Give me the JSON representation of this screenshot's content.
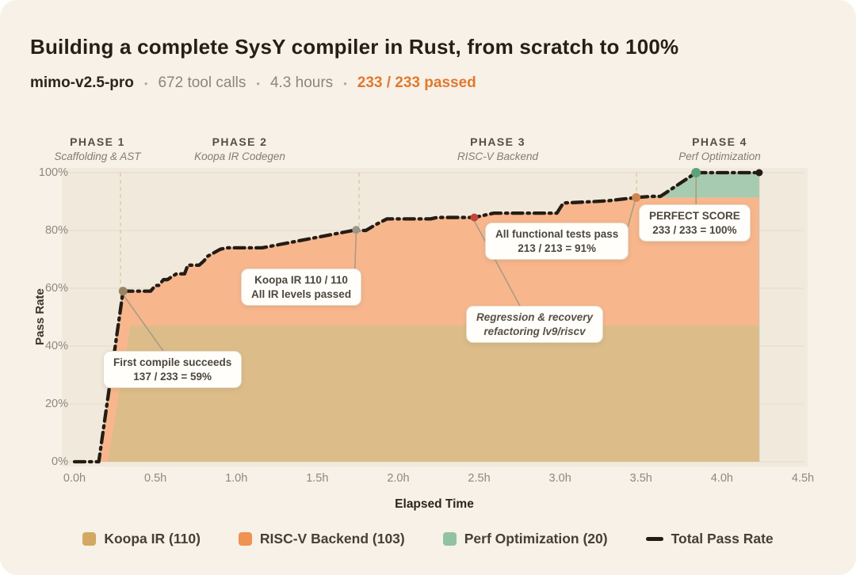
{
  "header": {
    "title": "Building a complete SysY compiler in Rust, from scratch to 100%",
    "model": "mimo-v2.5-pro",
    "separator": "•",
    "stats": [
      "672 tool calls",
      "4.3 hours"
    ],
    "passed": "233 / 233 passed",
    "passed_color": "#e0792f"
  },
  "phases": [
    {
      "name": "PHASE 1",
      "subtitle": "Scaffolding & AST"
    },
    {
      "name": "PHASE 2",
      "subtitle": "Koopa IR Codegen"
    },
    {
      "name": "PHASE 3",
      "subtitle": "RISC-V Backend"
    },
    {
      "name": "PHASE 4",
      "subtitle": "Perf Optimization"
    }
  ],
  "axes": {
    "y_label": "Pass Rate",
    "x_label": "Elapsed Time",
    "y_ticks": [
      {
        "value": 0,
        "label": "0%"
      },
      {
        "value": 20,
        "label": "20%"
      },
      {
        "value": 40,
        "label": "40%"
      },
      {
        "value": 60,
        "label": "60%"
      },
      {
        "value": 80,
        "label": "80%"
      },
      {
        "value": 100,
        "label": "100%"
      }
    ],
    "x_ticks": [
      {
        "value": 0,
        "label": "0.0h"
      },
      {
        "value": 0.5,
        "label": "0.5h"
      },
      {
        "value": 1,
        "label": "1.0h"
      },
      {
        "value": 1.5,
        "label": "1.5h"
      },
      {
        "value": 2,
        "label": "2.0h"
      },
      {
        "value": 2.5,
        "label": "2.5h"
      },
      {
        "value": 3,
        "label": "3.0h"
      },
      {
        "value": 3.5,
        "label": "3.5h"
      },
      {
        "value": 4,
        "label": "4.0h"
      },
      {
        "value": 4.5,
        "label": "4.5h"
      }
    ]
  },
  "annotations": [
    {
      "id": "first-compile",
      "lines": [
        "First compile succeeds",
        "137 / 233 = 59%"
      ],
      "italic": false
    },
    {
      "id": "koopa-complete",
      "lines": [
        "Koopa IR 110 / 110",
        "All IR levels passed"
      ],
      "italic": false
    },
    {
      "id": "functional-pass",
      "lines": [
        "All functional tests pass",
        "213 / 213 = 91%"
      ],
      "italic": false
    },
    {
      "id": "regression",
      "lines": [
        "Regression & recovery",
        "refactoring lv9/riscv"
      ],
      "italic": true
    },
    {
      "id": "perfect-score",
      "lines": [
        "PERFECT SCORE",
        "233 / 233 = 100%"
      ],
      "italic": false
    }
  ],
  "legend": {
    "items": [
      {
        "label": "Koopa IR (110)",
        "color": "#d2a862",
        "type": "square"
      },
      {
        "label": "RISC-V Backend (103)",
        "color": "#ef9252",
        "type": "square"
      },
      {
        "label": "Perf Optimization (20)",
        "color": "#91c2a2",
        "type": "square"
      },
      {
        "label": "Total Pass Rate",
        "color": "#221c15",
        "type": "line"
      }
    ]
  },
  "chart_data": {
    "type": "line+stacked-area",
    "title": "Building a complete SysY compiler in Rust, from scratch to 100%",
    "xlabel": "Elapsed Time",
    "ylabel": "Pass Rate",
    "x_unit": "hours",
    "y_unit": "percent",
    "xlim": [
      0,
      4.5
    ],
    "ylim": [
      0,
      100
    ],
    "grid": "horizontal",
    "legend_position": "bottom",
    "total_tests": 233,
    "data_end_hour": 4.23,
    "phase_boundaries_hours": [
      0.284,
      1.758,
      3.472
    ],
    "total_pass_rate": [
      [
        0.0,
        0
      ],
      [
        0.15,
        0
      ],
      [
        0.3,
        59
      ],
      [
        0.47,
        59
      ],
      [
        0.5,
        61
      ],
      [
        0.52,
        61
      ],
      [
        0.55,
        63
      ],
      [
        0.575,
        63
      ],
      [
        0.6,
        64
      ],
      [
        0.63,
        65
      ],
      [
        0.68,
        65
      ],
      [
        0.7,
        68
      ],
      [
        0.77,
        68
      ],
      [
        0.8,
        69.5
      ],
      [
        0.82,
        71
      ],
      [
        0.9,
        73.5
      ],
      [
        0.94,
        74
      ],
      [
        1.16,
        74
      ],
      [
        1.72,
        80
      ],
      [
        1.8,
        80
      ],
      [
        1.86,
        82
      ],
      [
        1.93,
        84
      ],
      [
        2.2,
        84
      ],
      [
        2.24,
        84.5
      ],
      [
        2.47,
        84.5
      ],
      [
        2.59,
        86
      ],
      [
        2.98,
        86
      ],
      [
        3.02,
        89.5
      ],
      [
        3.21,
        90
      ],
      [
        3.3,
        90.3
      ],
      [
        3.47,
        91.4
      ],
      [
        3.56,
        91.8
      ],
      [
        3.62,
        91.8
      ],
      [
        3.84,
        100
      ],
      [
        4.23,
        100
      ]
    ],
    "stack_series": [
      {
        "name": "Koopa IR",
        "tests": 110,
        "cumulative_top_pct": 47.2,
        "color": "#dcbd8a",
        "rise": [
          [
            0.205,
            0
          ],
          [
            0.345,
            47.2
          ]
        ]
      },
      {
        "name": "RISC-V Backend",
        "tests": 103,
        "cumulative_top_pct": 91.4,
        "color": "#f8b68d",
        "rise_start_hour": 0.15
      },
      {
        "name": "Perf Optimization",
        "tests": 20,
        "cumulative_top_pct": 100,
        "color": "#a6cbb0",
        "rise_start_hour": 3.47
      }
    ],
    "markers": [
      {
        "hour": 0.3,
        "pct": 59,
        "color": "#9b8464",
        "r": 5.5,
        "name": "first-compile-point"
      },
      {
        "hour": 1.74,
        "pct": 80.2,
        "color": "#9c968a",
        "r": 5,
        "name": "koopa-complete-point"
      },
      {
        "hour": 2.47,
        "pct": 84.5,
        "color": "#c0463a",
        "r": 5,
        "name": "regression-point"
      },
      {
        "hour": 3.47,
        "pct": 91.4,
        "color": "#cf8550",
        "r": 5.5,
        "name": "functional-pass-point"
      },
      {
        "hour": 3.84,
        "pct": 100,
        "color": "#5da37a",
        "r": 6,
        "name": "perfect-score-point"
      },
      {
        "hour": 4.23,
        "pct": 100,
        "color": "#221c15",
        "r": 4.5,
        "name": "end-point"
      }
    ],
    "line_color": "#241d15",
    "plot_bg": "#f1eadc",
    "grid_color": "#e2dac9",
    "phase_line_color": "#d6c8a6"
  }
}
